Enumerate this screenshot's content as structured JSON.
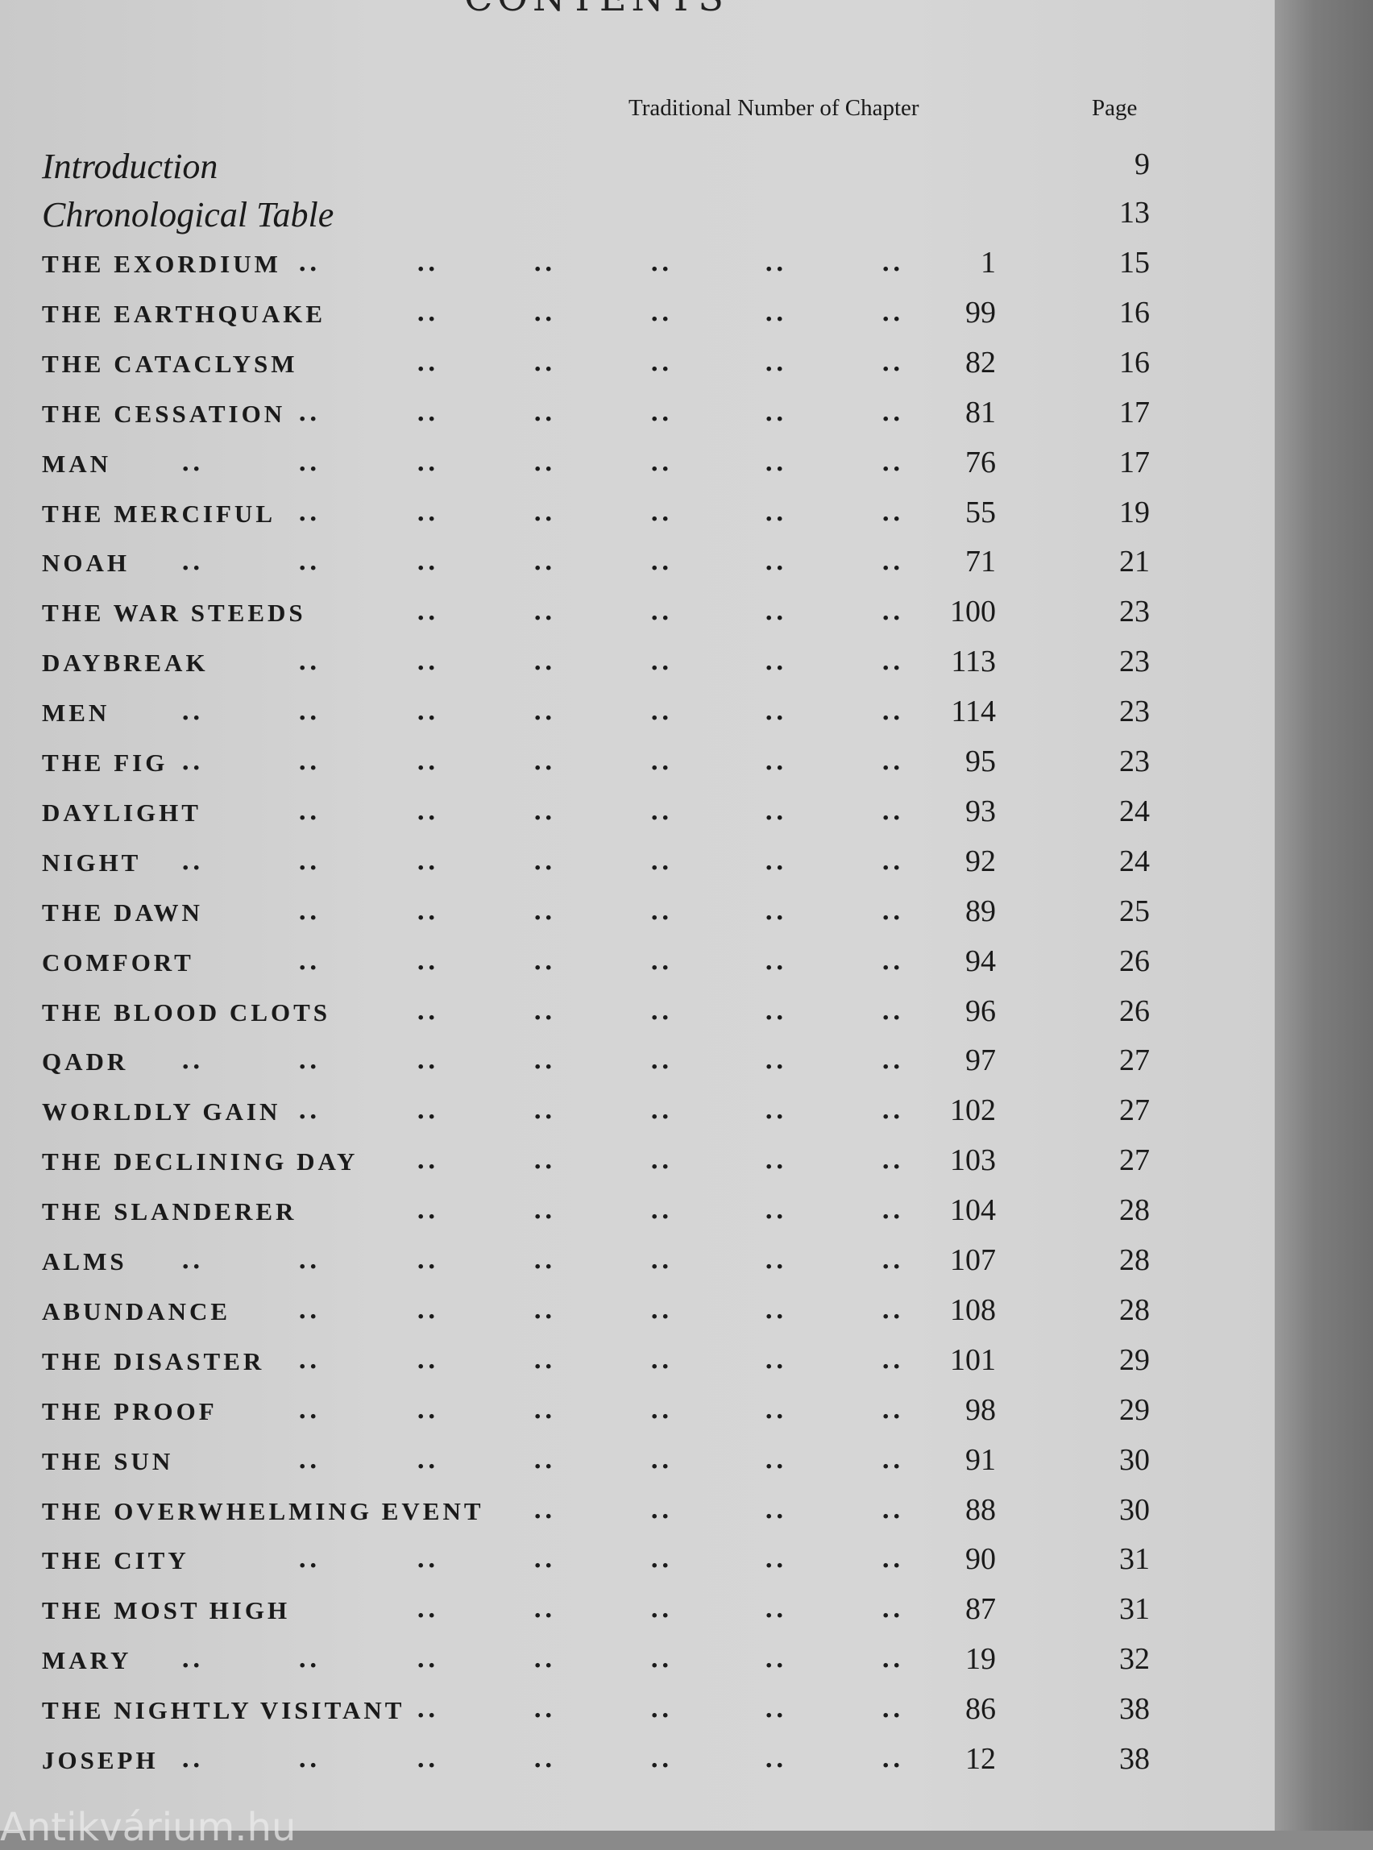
{
  "title": "CONTENTS",
  "headers": {
    "chapter": "Traditional Number of Chapter",
    "page": "Page"
  },
  "front_matter": [
    {
      "label": "Introduction",
      "page": "9"
    },
    {
      "label": "Chronological Table",
      "page": "13"
    }
  ],
  "entries": [
    {
      "label": "THE EXORDIUM",
      "chapter": "1",
      "page": "15"
    },
    {
      "label": "THE EARTHQUAKE",
      "chapter": "99",
      "page": "16"
    },
    {
      "label": "THE CATACLYSM",
      "chapter": "82",
      "page": "16"
    },
    {
      "label": "THE CESSATION",
      "chapter": "81",
      "page": "17"
    },
    {
      "label": "MAN",
      "chapter": "76",
      "page": "17"
    },
    {
      "label": "THE MERCIFUL",
      "chapter": "55",
      "page": "19"
    },
    {
      "label": "NOAH",
      "chapter": "71",
      "page": "21"
    },
    {
      "label": "THE WAR STEEDS",
      "chapter": "100",
      "page": "23"
    },
    {
      "label": "DAYBREAK",
      "chapter": "113",
      "page": "23"
    },
    {
      "label": "MEN",
      "chapter": "114",
      "page": "23"
    },
    {
      "label": "THE FIG",
      "chapter": "95",
      "page": "23"
    },
    {
      "label": "DAYLIGHT",
      "chapter": "93",
      "page": "24"
    },
    {
      "label": "NIGHT",
      "chapter": "92",
      "page": "24"
    },
    {
      "label": "THE DAWN",
      "chapter": "89",
      "page": "25"
    },
    {
      "label": "COMFORT",
      "chapter": "94",
      "page": "26"
    },
    {
      "label": "THE BLOOD CLOTS",
      "chapter": "96",
      "page": "26"
    },
    {
      "label": "QADR",
      "chapter": "97",
      "page": "27"
    },
    {
      "label": "WORLDLY GAIN",
      "chapter": "102",
      "page": "27"
    },
    {
      "label": "THE DECLINING DAY",
      "chapter": "103",
      "page": "27"
    },
    {
      "label": "THE SLANDERER",
      "chapter": "104",
      "page": "28"
    },
    {
      "label": "ALMS",
      "chapter": "107",
      "page": "28"
    },
    {
      "label": "ABUNDANCE",
      "chapter": "108",
      "page": "28"
    },
    {
      "label": "THE DISASTER",
      "chapter": "101",
      "page": "29"
    },
    {
      "label": "THE PROOF",
      "chapter": "98",
      "page": "29"
    },
    {
      "label": "THE SUN",
      "chapter": "91",
      "page": "30"
    },
    {
      "label": "THE OVERWHELMING EVENT",
      "chapter": "88",
      "page": "30"
    },
    {
      "label": "THE CITY",
      "chapter": "90",
      "page": "31"
    },
    {
      "label": "THE MOST HIGH",
      "chapter": "87",
      "page": "31"
    },
    {
      "label": "MARY",
      "chapter": "19",
      "page": "32"
    },
    {
      "label": "THE NIGHTLY VISITANT",
      "chapter": "86",
      "page": "38"
    },
    {
      "label": "JOSEPH",
      "chapter": "12",
      "page": "38"
    }
  ],
  "leader": "..",
  "watermark": "Antikvárium.hu"
}
